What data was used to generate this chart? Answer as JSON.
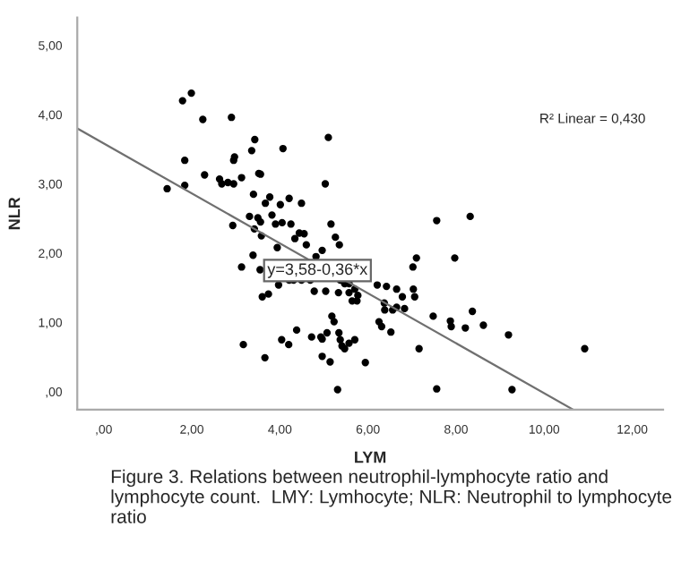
{
  "chart_data": {
    "type": "scatter",
    "xlabel": "LYM",
    "ylabel": "NLR",
    "xlim": [
      -0.6,
      12.7
    ],
    "ylim": [
      -0.26,
      5.4
    ],
    "xticks": [
      {
        "value": 0,
        "label": ",00"
      },
      {
        "value": 2,
        "label": "2,00"
      },
      {
        "value": 4,
        "label": "4,00"
      },
      {
        "value": 6,
        "label": "6,00"
      },
      {
        "value": 8,
        "label": "8,00"
      },
      {
        "value": 10,
        "label": "10,00"
      },
      {
        "value": 12,
        "label": "12,00"
      }
    ],
    "yticks": [
      {
        "value": 0,
        "label": ",00"
      },
      {
        "value": 1,
        "label": "1,00"
      },
      {
        "value": 2,
        "label": "2,00"
      },
      {
        "value": 3,
        "label": "3,00"
      },
      {
        "value": 4,
        "label": "4,00"
      },
      {
        "value": 5,
        "label": "5,00"
      }
    ],
    "grid": false,
    "series": [
      {
        "marker": "circle",
        "color": "#000000",
        "x": [
          1.44,
          1.79,
          1.99,
          1.84,
          1.84,
          2.25,
          2.29,
          2.63,
          2.68,
          2.82,
          2.9,
          2.97,
          2.95,
          2.93,
          2.95,
          3.13,
          3.13,
          3.17,
          3.31,
          3.36,
          3.43,
          3.4,
          3.42,
          3.39,
          3.5,
          3.52,
          3.56,
          3.56,
          3.58,
          3.55,
          3.6,
          3.67,
          3.74,
          3.66,
          3.77,
          3.82,
          3.9,
          4.01,
          4.07,
          4.05,
          4.04,
          3.94,
          3.97,
          4.21,
          4.25,
          4.2,
          4.34,
          4.38,
          4.31,
          4.44,
          4.49,
          4.55,
          4.6,
          4.72,
          4.78,
          4.96,
          4.93,
          5.03,
          4.96,
          5.04,
          4.96,
          5.1,
          5.07,
          5.14,
          5.16,
          5.18,
          5.23,
          5.31,
          5.26,
          5.33,
          5.34,
          5.37,
          5.41,
          5.47,
          5.57,
          5.57,
          5.64,
          4.21,
          4.49,
          4.69,
          4.82,
          5.35,
          5.37,
          5.47,
          5.57,
          5.7,
          5.77,
          5.75,
          5.7,
          5.94,
          6.21,
          6.42,
          6.65,
          6.78,
          6.37,
          6.38,
          6.56,
          6.65,
          6.83,
          6.25,
          6.31,
          6.52,
          7.02,
          7.1,
          7.03,
          7.06,
          7.16,
          7.48,
          7.56,
          7.56,
          7.87,
          7.89,
          7.97,
          8.21,
          8.32,
          8.37,
          8.62,
          9.19,
          9.27,
          10.92
        ],
        "values": [
          2.93,
          4.2,
          4.31,
          3.34,
          2.98,
          3.93,
          3.13,
          3.07,
          3.0,
          3.02,
          3.96,
          3.39,
          3.34,
          2.4,
          3.0,
          3.09,
          1.8,
          0.68,
          2.53,
          3.48,
          3.64,
          2.85,
          2.35,
          1.97,
          2.51,
          3.15,
          3.14,
          2.45,
          2.25,
          1.76,
          1.37,
          2.72,
          1.41,
          0.49,
          2.81,
          2.55,
          2.42,
          2.7,
          3.51,
          2.44,
          0.75,
          2.08,
          1.54,
          2.79,
          2.42,
          0.68,
          2.21,
          0.89,
          1.61,
          2.29,
          2.72,
          2.28,
          2.12,
          0.79,
          1.45,
          2.04,
          0.79,
          3.0,
          0.76,
          1.45,
          0.51,
          3.67,
          0.85,
          0.43,
          2.42,
          1.09,
          1.01,
          0.03,
          2.23,
          1.43,
          0.85,
          0.75,
          0.66,
          0.62,
          0.7,
          1.56,
          1.31,
          1.61,
          1.61,
          1.61,
          1.95,
          2.12,
          1.61,
          1.56,
          1.43,
          1.48,
          1.39,
          1.31,
          0.75,
          0.42,
          1.54,
          1.52,
          1.48,
          1.37,
          1.28,
          1.18,
          1.18,
          1.22,
          1.2,
          1.01,
          0.94,
          0.86,
          1.8,
          1.93,
          1.48,
          1.37,
          0.62,
          1.09,
          2.47,
          0.04,
          1.02,
          0.94,
          1.93,
          0.92,
          2.53,
          1.16,
          0.96,
          0.82,
          0.03,
          0.62
        ]
      },
      {
        "type": "line",
        "color": "#707070",
        "x": [
          -0.6,
          10.66
        ],
        "values": [
          3.8,
          -0.26
        ]
      }
    ],
    "annotations": [
      "y=3,58-0,36*x",
      "R² Linear = 0,430",
      "Figure 3. Relations between neutrophil-lymphocyte ratio and lymphocyte count.  LMY: Lymhocyte; NLR: Neutrophil to lymphocyte ratio"
    ]
  }
}
